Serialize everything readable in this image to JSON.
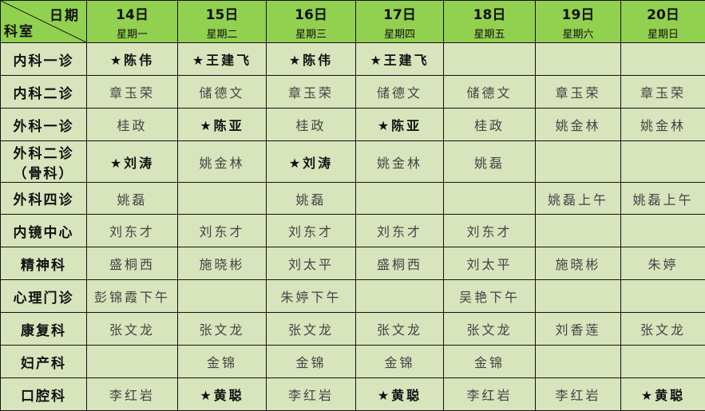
{
  "corner": {
    "top": "日期",
    "bottom": "科室"
  },
  "colors": {
    "header": "#92d050",
    "body": "#d8e4bc"
  },
  "days": [
    {
      "day": "14日",
      "weekday": "星期一"
    },
    {
      "day": "15日",
      "weekday": "星期二"
    },
    {
      "day": "16日",
      "weekday": "星期三"
    },
    {
      "day": "17日",
      "weekday": "星期四"
    },
    {
      "day": "18日",
      "weekday": "星期五"
    },
    {
      "day": "19日",
      "weekday": "星期六"
    },
    {
      "day": "20日",
      "weekday": "星期日"
    }
  ],
  "rows": [
    {
      "dept": "内科一诊",
      "cells": [
        "★陈伟",
        "★王建飞",
        "★陈伟",
        "★王建飞",
        "",
        "",
        ""
      ]
    },
    {
      "dept": "内科二诊",
      "cells": [
        "章玉荣",
        "储德文",
        "章玉荣",
        "储德文",
        "储德文",
        "章玉荣",
        "章玉荣"
      ]
    },
    {
      "dept": "外科一诊",
      "cells": [
        "桂政",
        "★陈亚",
        "桂政",
        "★陈亚",
        "桂政",
        "姚金林",
        "姚金林"
      ]
    },
    {
      "dept": "外科二诊",
      "dept2": "（骨科）",
      "cells": [
        "★刘涛",
        "姚金林",
        "★刘涛",
        "姚金林",
        "姚磊",
        "",
        ""
      ]
    },
    {
      "dept": "外科四诊",
      "cells": [
        "姚磊",
        "",
        "姚磊",
        "",
        "",
        "姚磊上午",
        "姚磊上午"
      ]
    },
    {
      "dept": "内镜中心",
      "cells": [
        "刘东才",
        "刘东才",
        "刘东才",
        "刘东才",
        "刘东才",
        "",
        ""
      ]
    },
    {
      "dept": "精神科",
      "cells": [
        "盛桐西",
        "施晓彬",
        "刘太平",
        "盛桐西",
        "刘太平",
        "施晓彬",
        "朱婷"
      ]
    },
    {
      "dept": "心理门诊",
      "cells": [
        "彭锦霞下午",
        "",
        "朱婷下午",
        "",
        "吴艳下午",
        "",
        ""
      ]
    },
    {
      "dept": "康复科",
      "cells": [
        "张文龙",
        "张文龙",
        "张文龙",
        "张文龙",
        "张文龙",
        "刘香莲",
        "张文龙"
      ]
    },
    {
      "dept": "妇产科",
      "cells": [
        "",
        "金锦",
        "金锦",
        "金锦",
        "金锦",
        "",
        ""
      ]
    },
    {
      "dept": "口腔科",
      "cells": [
        "李红岩",
        "★黄聪",
        "李红岩",
        "★黄聪",
        "李红岩",
        "李红岩",
        "★黄聪"
      ]
    }
  ]
}
